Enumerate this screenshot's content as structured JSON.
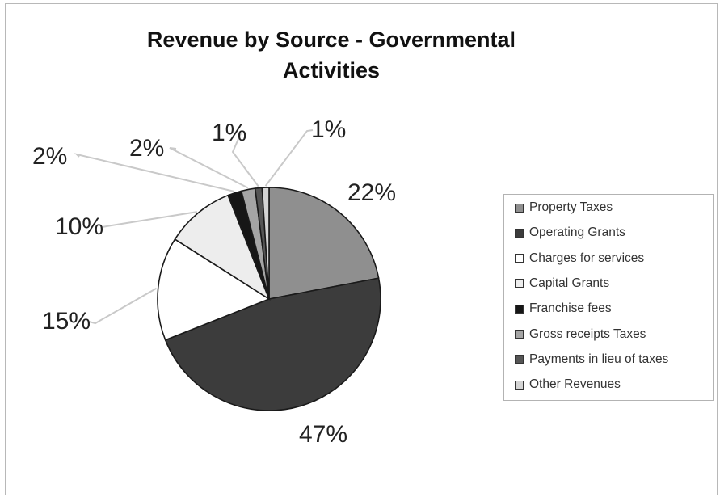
{
  "chart_data": {
    "type": "pie",
    "title": "Revenue by Source - Governmental Activities",
    "slices": [
      {
        "label": "Property Taxes",
        "value": 22,
        "value_label": "22%",
        "color": "#8f8f8f"
      },
      {
        "label": "Operating Grants",
        "value": 47,
        "value_label": "47%",
        "color": "#3c3c3c"
      },
      {
        "label": "Charges for services",
        "value": 15,
        "value_label": "15%",
        "color": "#ffffff"
      },
      {
        "label": "Capital Grants",
        "value": 10,
        "value_label": "10%",
        "color": "#ededed"
      },
      {
        "label": "Franchise fees",
        "value": 2,
        "value_label": "2%",
        "color": "#161616"
      },
      {
        "label": "Gross receipts Taxes",
        "value": 2,
        "value_label": "2%",
        "color": "#a5a5a5"
      },
      {
        "label": "Payments in lieu of taxes",
        "value": 1,
        "value_label": "1%",
        "color": "#555555"
      },
      {
        "label": "Other Revenues",
        "value": 1,
        "value_label": "1%",
        "color": "#d4d4d4"
      }
    ],
    "legend_position": "right"
  }
}
